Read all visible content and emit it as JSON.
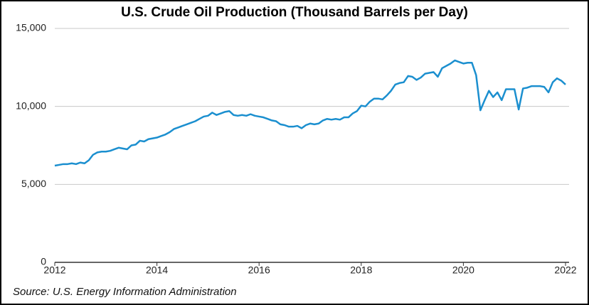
{
  "chart_data": {
    "type": "line",
    "title": "U.S. Crude Oil Production (Thousand Barrels per Day)",
    "source": "Source: U.S. Energy Information Administration",
    "color": "#1b8fcf",
    "grid": true,
    "xlim": [
      2012,
      2022
    ],
    "xticks": [
      2012,
      2014,
      2016,
      2018,
      2020,
      2022
    ],
    "ylim": [
      0,
      15000
    ],
    "yticks": [
      0,
      {
        "value": 5000,
        "label": "5,000"
      },
      {
        "value": 10000,
        "label": "10,000"
      },
      {
        "value": 15000,
        "label": "15,000"
      }
    ],
    "x": [
      2012,
      2012.083,
      2012.167,
      2012.25,
      2012.333,
      2012.417,
      2012.5,
      2012.583,
      2012.667,
      2012.75,
      2012.833,
      2012.917,
      2013,
      2013.083,
      2013.167,
      2013.25,
      2013.333,
      2013.417,
      2013.5,
      2013.583,
      2013.667,
      2013.75,
      2013.833,
      2013.917,
      2014,
      2014.083,
      2014.167,
      2014.25,
      2014.333,
      2014.417,
      2014.5,
      2014.583,
      2014.667,
      2014.75,
      2014.833,
      2014.917,
      2015,
      2015.083,
      2015.167,
      2015.25,
      2015.333,
      2015.417,
      2015.5,
      2015.583,
      2015.667,
      2015.75,
      2015.833,
      2015.917,
      2016,
      2016.083,
      2016.167,
      2016.25,
      2016.333,
      2016.417,
      2016.5,
      2016.583,
      2016.667,
      2016.75,
      2016.833,
      2016.917,
      2017,
      2017.083,
      2017.167,
      2017.25,
      2017.333,
      2017.417,
      2017.5,
      2017.583,
      2017.667,
      2017.75,
      2017.833,
      2017.917,
      2018,
      2018.083,
      2018.167,
      2018.25,
      2018.333,
      2018.417,
      2018.5,
      2018.583,
      2018.667,
      2018.75,
      2018.833,
      2018.917,
      2019,
      2019.083,
      2019.167,
      2019.25,
      2019.333,
      2019.417,
      2019.5,
      2019.583,
      2019.667,
      2019.75,
      2019.833,
      2019.917,
      2020,
      2020.083,
      2020.167,
      2020.25,
      2020.333,
      2020.417,
      2020.5,
      2020.583,
      2020.667,
      2020.75,
      2020.833,
      2020.917,
      2021,
      2021.083,
      2021.167,
      2021.25,
      2021.333,
      2021.417,
      2021.5,
      2021.583,
      2021.667,
      2021.75,
      2021.833,
      2021.917,
      2022
    ],
    "values": [
      6200,
      6250,
      6300,
      6300,
      6350,
      6300,
      6400,
      6350,
      6550,
      6900,
      7050,
      7100,
      7100,
      7150,
      7250,
      7350,
      7300,
      7250,
      7500,
      7550,
      7800,
      7750,
      7900,
      7950,
      8000,
      8100,
      8200,
      8350,
      8550,
      8650,
      8750,
      8850,
      8950,
      9050,
      9200,
      9350,
      9400,
      9600,
      9450,
      9550,
      9650,
      9700,
      9450,
      9400,
      9450,
      9400,
      9500,
      9400,
      9350,
      9300,
      9200,
      9100,
      9050,
      8850,
      8800,
      8700,
      8700,
      8750,
      8600,
      8800,
      8900,
      8850,
      8900,
      9100,
      9200,
      9150,
      9200,
      9150,
      9300,
      9300,
      9550,
      9700,
      10050,
      10000,
      10300,
      10500,
      10500,
      10450,
      10700,
      11000,
      11400,
      11500,
      11550,
      11950,
      11900,
      11700,
      11850,
      12100,
      12150,
      12200,
      11900,
      12450,
      12600,
      12750,
      12950,
      12850,
      12750,
      12800,
      12800,
      12000,
      9750,
      10400,
      11000,
      10600,
      10900,
      10400,
      11100,
      11100,
      11100,
      9800,
      11150,
      11200,
      11300,
      11300,
      11300,
      11250,
      10900,
      11550,
      11800,
      11650,
      11400
    ]
  }
}
